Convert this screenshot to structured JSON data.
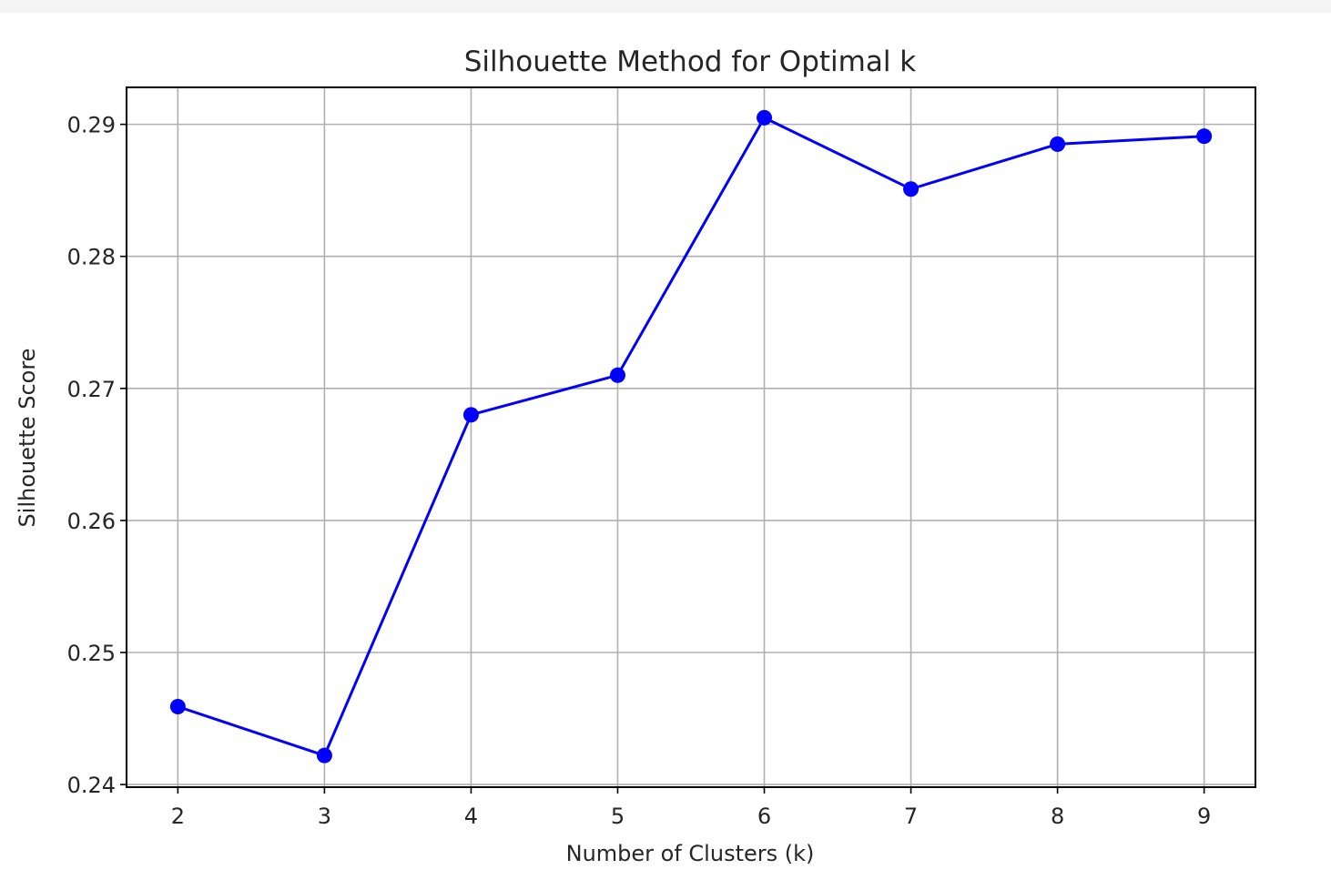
{
  "chart_data": {
    "type": "line",
    "title": "Silhouette Method for Optimal k",
    "xlabel": "Number of Clusters (k)",
    "ylabel": "Silhouette Score",
    "x": [
      2,
      3,
      4,
      5,
      6,
      7,
      8,
      9
    ],
    "series": [
      {
        "values": [
          0.2459,
          0.2422,
          0.268,
          0.271,
          0.2905,
          0.2851,
          0.2885,
          0.2891
        ],
        "color": "#0000ff",
        "marker": "circle"
      }
    ],
    "xticks": [
      "2",
      "3",
      "4",
      "5",
      "6",
      "7",
      "8",
      "9"
    ],
    "yticks": [
      "0.24",
      "0.25",
      "0.26",
      "0.27",
      "0.28",
      "0.29"
    ],
    "xlim": [
      1.65,
      9.35
    ],
    "ylim": [
      0.2398,
      0.2928
    ],
    "grid": true
  }
}
